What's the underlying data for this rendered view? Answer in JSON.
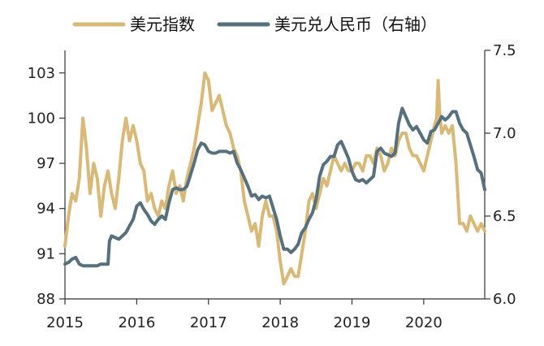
{
  "chart_data": {
    "type": "line",
    "title": "",
    "legend_position": "top",
    "grid": false,
    "x_ticks": [
      "2015",
      "2016",
      "2017",
      "2018",
      "2019",
      "2020"
    ],
    "x_range": [
      2015.0,
      2020.85
    ],
    "y_left": {
      "ticks": [
        "88",
        "91",
        "94",
        "97",
        "100",
        "103"
      ],
      "range": [
        88,
        104.5
      ]
    },
    "y_right": {
      "ticks": [
        "6.0",
        "6.5",
        "7.0",
        "7.5"
      ],
      "range": [
        6.0,
        7.5
      ]
    },
    "series": [
      {
        "name": "美元指数",
        "axis": "left",
        "color": "#D9B978",
        "x": [
          2015.0,
          2015.05,
          2015.1,
          2015.15,
          2015.2,
          2015.25,
          2015.3,
          2015.35,
          2015.4,
          2015.45,
          2015.5,
          2015.55,
          2015.6,
          2015.65,
          2015.7,
          2015.75,
          2015.8,
          2015.85,
          2015.9,
          2015.95,
          2016.0,
          2016.05,
          2016.1,
          2016.15,
          2016.2,
          2016.25,
          2016.3,
          2016.35,
          2016.4,
          2016.45,
          2016.5,
          2016.55,
          2016.6,
          2016.65,
          2016.7,
          2016.75,
          2016.8,
          2016.85,
          2016.9,
          2016.95,
          2017.0,
          2017.05,
          2017.1,
          2017.15,
          2017.2,
          2017.25,
          2017.3,
          2017.35,
          2017.4,
          2017.45,
          2017.5,
          2017.55,
          2017.6,
          2017.65,
          2017.7,
          2017.75,
          2017.8,
          2017.85,
          2017.9,
          2017.95,
          2018.0,
          2018.05,
          2018.1,
          2018.15,
          2018.2,
          2018.25,
          2018.3,
          2018.35,
          2018.4,
          2018.45,
          2018.5,
          2018.55,
          2018.6,
          2018.65,
          2018.7,
          2018.75,
          2018.8,
          2018.85,
          2018.9,
          2018.95,
          2019.0,
          2019.05,
          2019.1,
          2019.15,
          2019.2,
          2019.25,
          2019.3,
          2019.35,
          2019.4,
          2019.45,
          2019.5,
          2019.55,
          2019.6,
          2019.65,
          2019.7,
          2019.75,
          2019.8,
          2019.85,
          2019.9,
          2019.95,
          2020.0,
          2020.05,
          2020.1,
          2020.15,
          2020.18,
          2020.2,
          2020.22,
          2020.25,
          2020.3,
          2020.35,
          2020.4,
          2020.45,
          2020.5,
          2020.55,
          2020.6,
          2020.65,
          2020.7,
          2020.75,
          2020.8,
          2020.85
        ],
        "values": [
          91.5,
          93.5,
          95.0,
          94.5,
          96.0,
          100.0,
          98.0,
          95.0,
          97.0,
          96.0,
          93.5,
          95.5,
          96.5,
          95.0,
          94.0,
          96.0,
          98.5,
          100.0,
          98.5,
          99.5,
          98.5,
          97.0,
          96.5,
          94.5,
          95.0,
          94.0,
          93.5,
          94.5,
          94.0,
          95.5,
          96.5,
          95.0,
          95.5,
          94.5,
          96.0,
          97.0,
          98.0,
          99.5,
          101.0,
          103.0,
          102.5,
          100.5,
          101.0,
          101.5,
          100.5,
          99.5,
          99.0,
          98.0,
          97.5,
          96.5,
          94.5,
          93.5,
          92.5,
          93.0,
          91.5,
          93.5,
          94.5,
          93.5,
          93.5,
          92.5,
          90.5,
          89.0,
          89.5,
          90.0,
          89.5,
          89.5,
          91.0,
          92.5,
          94.5,
          95.0,
          94.0,
          95.0,
          96.0,
          95.5,
          96.5,
          97.5,
          97.0,
          96.5,
          97.0,
          96.5,
          96.5,
          97.0,
          97.0,
          96.5,
          97.5,
          97.5,
          97.0,
          98.0,
          97.5,
          96.5,
          97.0,
          98.0,
          97.5,
          98.5,
          99.0,
          99.0,
          98.0,
          97.5,
          97.5,
          97.0,
          96.5,
          97.5,
          98.5,
          99.5,
          100.0,
          102.5,
          100.5,
          99.0,
          99.5,
          99.0,
          99.5,
          97.0,
          93.0,
          93.0,
          92.5,
          93.5,
          93.0,
          92.5,
          93.0,
          92.5
        ]
      },
      {
        "name": "美元兑人民币（右轴）",
        "axis": "right",
        "color": "#57707E",
        "x": [
          2015.0,
          2015.05,
          2015.1,
          2015.15,
          2015.2,
          2015.25,
          2015.3,
          2015.35,
          2015.4,
          2015.45,
          2015.5,
          2015.55,
          2015.6,
          2015.62,
          2015.65,
          2015.7,
          2015.75,
          2015.8,
          2015.85,
          2015.9,
          2015.95,
          2016.0,
          2016.05,
          2016.1,
          2016.15,
          2016.2,
          2016.25,
          2016.3,
          2016.35,
          2016.4,
          2016.45,
          2016.5,
          2016.55,
          2016.6,
          2016.65,
          2016.7,
          2016.75,
          2016.8,
          2016.85,
          2016.9,
          2016.95,
          2017.0,
          2017.05,
          2017.1,
          2017.15,
          2017.2,
          2017.25,
          2017.3,
          2017.35,
          2017.4,
          2017.45,
          2017.5,
          2017.55,
          2017.6,
          2017.65,
          2017.7,
          2017.75,
          2017.8,
          2017.85,
          2017.9,
          2017.95,
          2018.0,
          2018.05,
          2018.1,
          2018.15,
          2018.2,
          2018.25,
          2018.3,
          2018.35,
          2018.4,
          2018.45,
          2018.5,
          2018.55,
          2018.6,
          2018.65,
          2018.7,
          2018.75,
          2018.8,
          2018.85,
          2018.9,
          2018.95,
          2019.0,
          2019.05,
          2019.1,
          2019.15,
          2019.2,
          2019.25,
          2019.3,
          2019.35,
          2019.4,
          2019.45,
          2019.5,
          2019.55,
          2019.6,
          2019.65,
          2019.7,
          2019.75,
          2019.8,
          2019.85,
          2019.9,
          2019.95,
          2020.0,
          2020.05,
          2020.1,
          2020.15,
          2020.2,
          2020.25,
          2020.3,
          2020.35,
          2020.4,
          2020.45,
          2020.5,
          2020.55,
          2020.6,
          2020.65,
          2020.7,
          2020.75,
          2020.8,
          2020.85
        ],
        "values": [
          6.21,
          6.22,
          6.24,
          6.25,
          6.21,
          6.2,
          6.2,
          6.2,
          6.2,
          6.2,
          6.21,
          6.21,
          6.21,
          6.35,
          6.38,
          6.37,
          6.36,
          6.38,
          6.4,
          6.44,
          6.48,
          6.56,
          6.58,
          6.54,
          6.51,
          6.47,
          6.45,
          6.48,
          6.5,
          6.48,
          6.58,
          6.66,
          6.67,
          6.66,
          6.66,
          6.68,
          6.75,
          6.82,
          6.9,
          6.94,
          6.93,
          6.89,
          6.88,
          6.88,
          6.89,
          6.89,
          6.89,
          6.88,
          6.89,
          6.82,
          6.78,
          6.73,
          6.68,
          6.62,
          6.63,
          6.6,
          6.62,
          6.61,
          6.62,
          6.55,
          6.48,
          6.38,
          6.3,
          6.3,
          6.28,
          6.3,
          6.33,
          6.4,
          6.43,
          6.48,
          6.52,
          6.6,
          6.74,
          6.81,
          6.83,
          6.86,
          6.86,
          6.93,
          6.95,
          6.9,
          6.85,
          6.77,
          6.72,
          6.71,
          6.72,
          6.7,
          6.72,
          6.74,
          6.89,
          6.91,
          6.88,
          6.87,
          6.86,
          6.88,
          7.06,
          7.15,
          7.1,
          7.05,
          7.02,
          7.04,
          7.0,
          6.96,
          6.94,
          7.01,
          7.02,
          7.06,
          7.1,
          7.08,
          7.1,
          7.13,
          7.13,
          7.06,
          7.02,
          7.0,
          6.93,
          6.86,
          6.78,
          6.76,
          6.66
        ]
      }
    ]
  }
}
